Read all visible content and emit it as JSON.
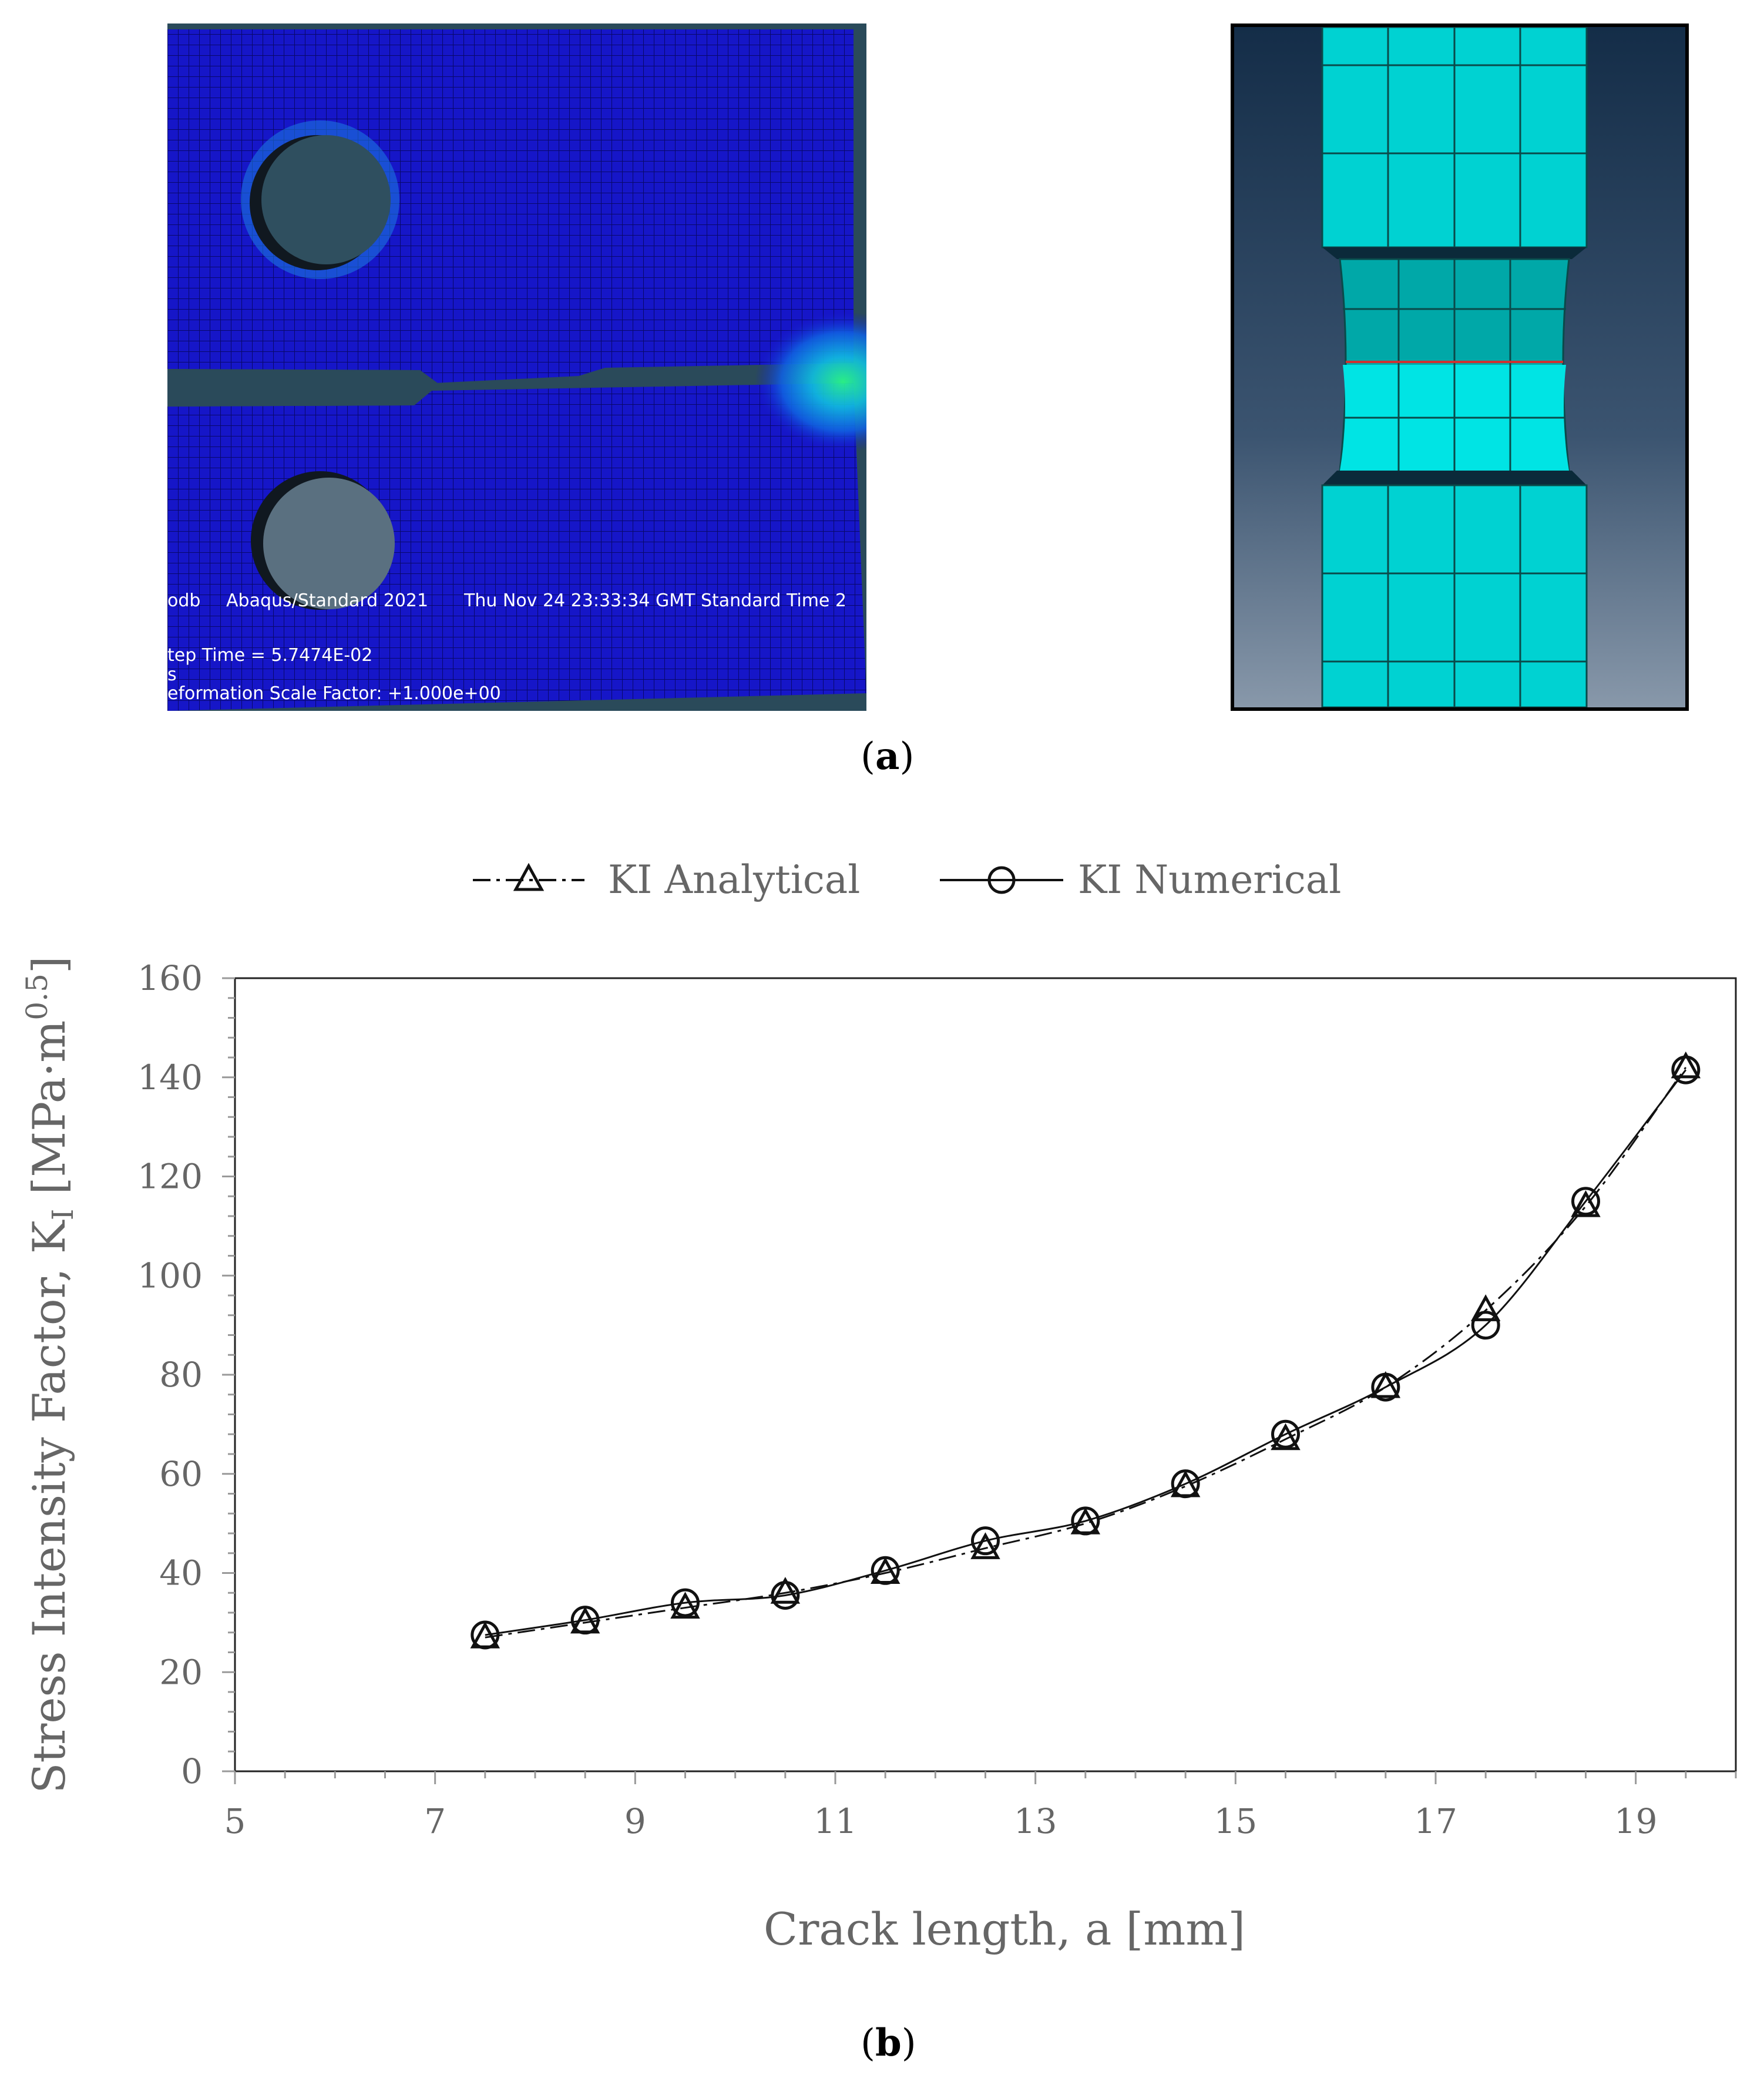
{
  "panel_a": {
    "caption_letter": "a",
    "overlay": {
      "line1_file": "odb",
      "line1_version": "Abaqus/Standard 2021",
      "line1_date": "Thu Nov 24 23:33:34 GMT Standard Time 2",
      "line2": "tep Time =   5.7474E-02",
      "line3": "s",
      "line4": "eformation Scale Factor: +1.000e+00"
    },
    "colors": {
      "mesh_blue": "#1414c8",
      "background": "#2a4a5a",
      "cut_cyan": "#00d8d8"
    }
  },
  "panel_b": {
    "caption_letter": "b"
  },
  "chart_data": {
    "type": "line",
    "xlabel": "Crack length, a [mm]",
    "ylabel_main": "Stress Intensity Factor, K",
    "ylabel_sub": "I",
    "ylabel_unit": " [MPa·m",
    "ylabel_sup": "0.5",
    "ylabel_close": "]",
    "xlim": [
      5,
      20
    ],
    "ylim": [
      0,
      160
    ],
    "x_ticks": [
      5,
      7,
      9,
      11,
      13,
      15,
      17,
      19
    ],
    "y_ticks": [
      0,
      20,
      40,
      60,
      80,
      100,
      120,
      140,
      160
    ],
    "x": [
      7.5,
      8.5,
      9.5,
      10.5,
      11.5,
      12.5,
      13.5,
      14.5,
      15.5,
      16.5,
      17.5,
      18.5,
      19.5
    ],
    "series": [
      {
        "name": "KI Analytical",
        "marker": "triangle",
        "line": "dash-dot",
        "values": [
          27,
          30,
          33,
          36,
          40,
          45,
          50,
          57.5,
          67,
          77.5,
          93,
          114,
          142
        ]
      },
      {
        "name": "KI Numerical",
        "marker": "circle",
        "line": "solid",
        "values": [
          27.5,
          30.5,
          34,
          35.5,
          40.5,
          46.5,
          50.5,
          58,
          68,
          77.5,
          90,
          115,
          141.5
        ]
      }
    ],
    "legend": "top-center",
    "grid": false
  }
}
